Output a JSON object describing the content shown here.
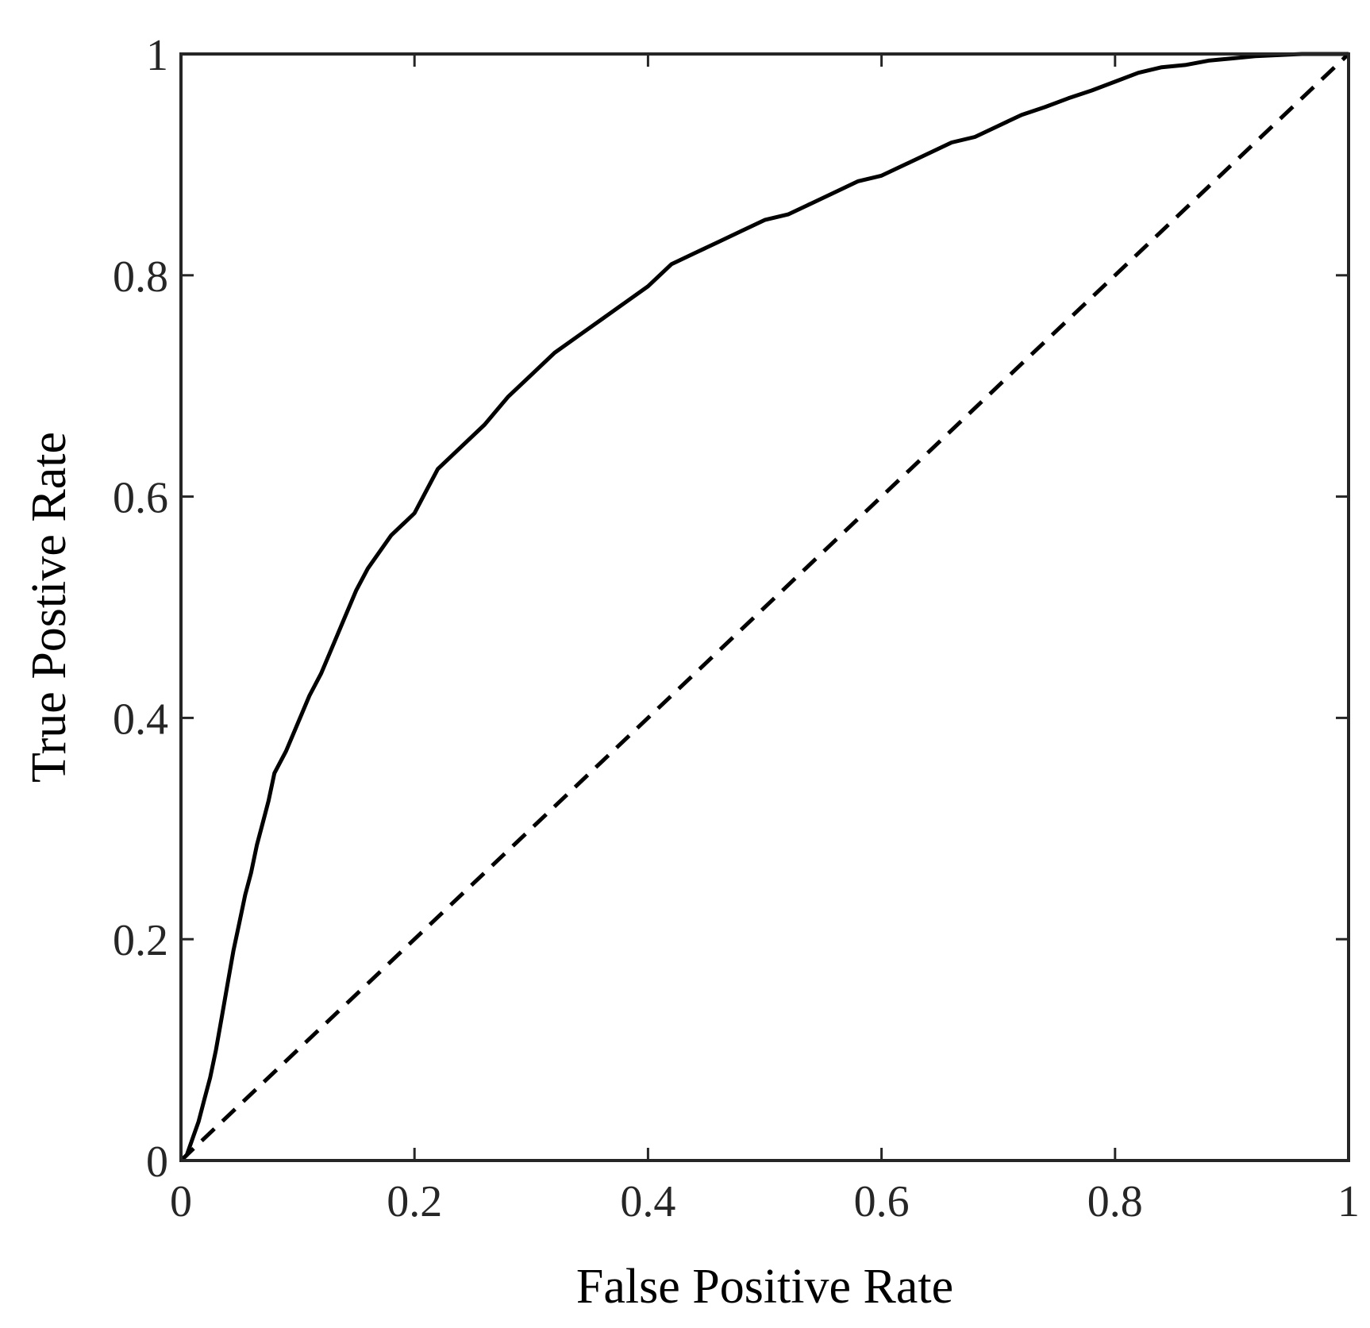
{
  "chart_data": {
    "type": "line",
    "xlabel": "False Positive Rate",
    "ylabel": "True Postive Rate",
    "xlim": [
      0,
      1
    ],
    "ylim": [
      0,
      1
    ],
    "xticks": [
      0,
      0.2,
      0.4,
      0.6,
      0.8,
      1
    ],
    "yticks": [
      0,
      0.2,
      0.4,
      0.6,
      0.8,
      1
    ],
    "xtick_labels": [
      "0",
      "0.2",
      "0.4",
      "0.6",
      "0.8",
      "1"
    ],
    "ytick_labels": [
      "0",
      "0.2",
      "0.4",
      "0.6",
      "0.8",
      "1"
    ],
    "grid": false,
    "series": [
      {
        "style": "solid",
        "color": "#000000",
        "x": [
          0,
          0.005,
          0.01,
          0.015,
          0.02,
          0.025,
          0.03,
          0.035,
          0.04,
          0.045,
          0.05,
          0.055,
          0.06,
          0.065,
          0.07,
          0.075,
          0.08,
          0.09,
          0.1,
          0.11,
          0.12,
          0.13,
          0.14,
          0.15,
          0.16,
          0.17,
          0.18,
          0.19,
          0.2,
          0.21,
          0.22,
          0.24,
          0.26,
          0.28,
          0.3,
          0.32,
          0.34,
          0.36,
          0.38,
          0.4,
          0.42,
          0.44,
          0.46,
          0.48,
          0.5,
          0.52,
          0.54,
          0.56,
          0.58,
          0.6,
          0.62,
          0.64,
          0.66,
          0.68,
          0.7,
          0.72,
          0.74,
          0.76,
          0.78,
          0.8,
          0.82,
          0.84,
          0.86,
          0.88,
          0.9,
          0.92,
          0.94,
          0.96,
          0.98,
          1
        ],
        "y": [
          0,
          0.005,
          0.02,
          0.035,
          0.055,
          0.075,
          0.1,
          0.13,
          0.16,
          0.19,
          0.215,
          0.24,
          0.26,
          0.285,
          0.305,
          0.325,
          0.35,
          0.37,
          0.395,
          0.42,
          0.44,
          0.465,
          0.49,
          0.515,
          0.535,
          0.55,
          0.565,
          0.575,
          0.585,
          0.605,
          0.625,
          0.645,
          0.665,
          0.69,
          0.71,
          0.73,
          0.745,
          0.76,
          0.775,
          0.79,
          0.81,
          0.82,
          0.83,
          0.84,
          0.85,
          0.855,
          0.865,
          0.875,
          0.885,
          0.89,
          0.9,
          0.91,
          0.92,
          0.925,
          0.935,
          0.945,
          0.952,
          0.96,
          0.967,
          0.975,
          0.983,
          0.988,
          0.99,
          0.994,
          0.996,
          0.998,
          0.999,
          1,
          1,
          1
        ]
      },
      {
        "style": "dashed",
        "color": "#000000",
        "x": [
          0,
          1
        ],
        "y": [
          0,
          1
        ]
      }
    ]
  }
}
